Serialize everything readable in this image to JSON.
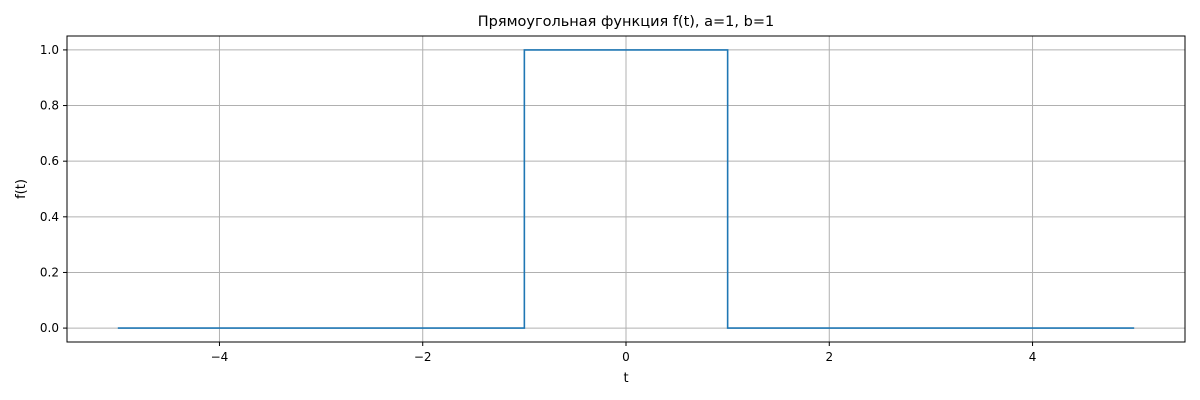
{
  "chart_data": {
    "type": "line",
    "title": "Прямоугольная функция f(t), a=1, b=1",
    "xlabel": "t",
    "ylabel": "f(t)",
    "xlim": [
      -5.5,
      5.5
    ],
    "ylim": [
      -0.05,
      1.05
    ],
    "grid": true,
    "x_ticks": [
      -4,
      -2,
      0,
      2,
      4
    ],
    "x_tick_labels": [
      "−4",
      "−2",
      "0",
      "2",
      "4"
    ],
    "y_ticks": [
      0.0,
      0.2,
      0.4,
      0.6,
      0.8,
      1.0
    ],
    "y_tick_labels": [
      "0.0",
      "0.2",
      "0.4",
      "0.6",
      "0.8",
      "1.0"
    ],
    "series": [
      {
        "color": "#1f77b4",
        "x": [
          -5,
          -1,
          -1,
          1,
          1,
          5
        ],
        "y": [
          0,
          0,
          1,
          1,
          0,
          0
        ]
      }
    ]
  }
}
